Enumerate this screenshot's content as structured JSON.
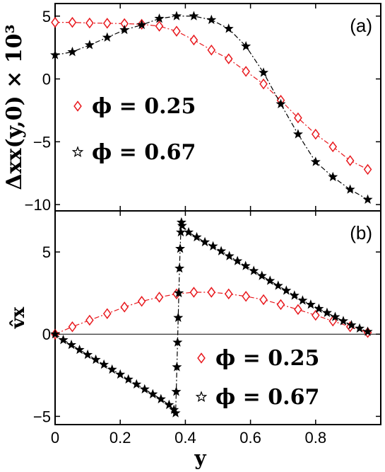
{
  "chart_data": [
    {
      "type": "line",
      "panel_label": "(a)",
      "xlabel": "",
      "ylabel": "Δxx(y,0) × 10³",
      "xlim": [
        0,
        1
      ],
      "ylim": [
        -10.5,
        6
      ],
      "xticks": [
        0,
        0.2,
        0.4,
        0.6,
        0.8
      ],
      "xtick_labels": [],
      "yticks": [
        5,
        0,
        -5,
        -10
      ],
      "ytick_labels": [
        "5",
        "0",
        "−5",
        "−10"
      ],
      "legend_position": "left",
      "series": [
        {
          "name": "ϕ = 0.25",
          "color": "#e8191e",
          "marker": "diamond",
          "linestyle": "dash-dot",
          "x": [
            0.0,
            0.053,
            0.106,
            0.16,
            0.213,
            0.266,
            0.32,
            0.373,
            0.426,
            0.48,
            0.533,
            0.586,
            0.64,
            0.693,
            0.746,
            0.8,
            0.853,
            0.906,
            0.96
          ],
          "y": [
            4.5,
            4.5,
            4.45,
            4.43,
            4.4,
            4.35,
            4.2,
            3.8,
            3.1,
            2.3,
            1.6,
            0.6,
            -0.4,
            -1.7,
            -3.1,
            -4.4,
            -5.4,
            -6.5,
            -7.2
          ]
        },
        {
          "name": "ϕ = 0.67",
          "color": "#000000",
          "marker": "star",
          "linestyle": "dash-dot",
          "x": [
            0.0,
            0.053,
            0.106,
            0.16,
            0.213,
            0.266,
            0.32,
            0.373,
            0.426,
            0.48,
            0.533,
            0.586,
            0.64,
            0.693,
            0.746,
            0.8,
            0.853,
            0.906,
            0.96
          ],
          "y": [
            1.9,
            2.15,
            2.7,
            3.3,
            3.9,
            4.3,
            4.8,
            5.0,
            5.0,
            4.7,
            4.0,
            2.6,
            0.5,
            -2.0,
            -4.4,
            -6.6,
            -7.8,
            -8.8,
            -9.6
          ]
        }
      ]
    },
    {
      "type": "line",
      "panel_label": "(b)",
      "xlabel": "y",
      "ylabel": "v̂x",
      "xlim": [
        0,
        1
      ],
      "ylim": [
        -5.5,
        7.5
      ],
      "xticks": [
        0,
        0.2,
        0.4,
        0.6,
        0.8
      ],
      "xtick_labels": [
        "0",
        "0.2",
        "0.4",
        "0.6",
        "0.8"
      ],
      "yticks": [
        5,
        0,
        -5
      ],
      "ytick_labels": [
        "5",
        "0",
        "−5"
      ],
      "zero_line": true,
      "legend_position": "bottom-right",
      "series": [
        {
          "name": "ϕ = 0.25",
          "color": "#e8191e",
          "marker": "diamond",
          "linestyle": "dash-dot",
          "x": [
            0.0,
            0.053,
            0.106,
            0.16,
            0.213,
            0.266,
            0.32,
            0.373,
            0.426,
            0.48,
            0.533,
            0.586,
            0.64,
            0.693,
            0.746,
            0.8,
            0.853,
            0.906,
            0.96
          ],
          "y": [
            0.0,
            0.45,
            0.85,
            1.25,
            1.65,
            2.0,
            2.25,
            2.45,
            2.55,
            2.55,
            2.45,
            2.3,
            2.1,
            1.8,
            1.5,
            1.15,
            0.8,
            0.45,
            0.1
          ]
        },
        {
          "name": "ϕ = 0.67",
          "color": "#000000",
          "marker": "star",
          "linestyle": "dash-dot",
          "x": [
            0.0,
            0.025,
            0.05,
            0.075,
            0.1,
            0.125,
            0.15,
            0.175,
            0.2,
            0.225,
            0.25,
            0.275,
            0.3,
            0.325,
            0.35,
            0.365,
            0.37,
            0.372,
            0.374,
            0.376,
            0.378,
            0.38,
            0.382,
            0.384,
            0.386,
            0.388,
            0.39,
            0.41,
            0.435,
            0.46,
            0.485,
            0.51,
            0.535,
            0.56,
            0.585,
            0.61,
            0.635,
            0.66,
            0.685,
            0.71,
            0.735,
            0.76,
            0.785,
            0.81,
            0.835,
            0.86,
            0.885,
            0.91,
            0.935,
            0.96
          ],
          "y": [
            0.0,
            -0.35,
            -0.65,
            -0.95,
            -1.25,
            -1.55,
            -1.85,
            -2.15,
            -2.45,
            -2.75,
            -3.05,
            -3.35,
            -3.65,
            -3.95,
            -4.3,
            -4.6,
            -4.8,
            -3.5,
            -2.0,
            -0.5,
            1.0,
            2.5,
            4.0,
            5.2,
            6.2,
            6.8,
            6.6,
            6.2,
            5.9,
            5.6,
            5.35,
            5.05,
            4.75,
            4.45,
            4.15,
            3.85,
            3.55,
            3.25,
            2.95,
            2.65,
            2.35,
            2.05,
            1.8,
            1.55,
            1.3,
            1.05,
            0.8,
            0.55,
            0.35,
            0.15
          ]
        }
      ]
    }
  ]
}
